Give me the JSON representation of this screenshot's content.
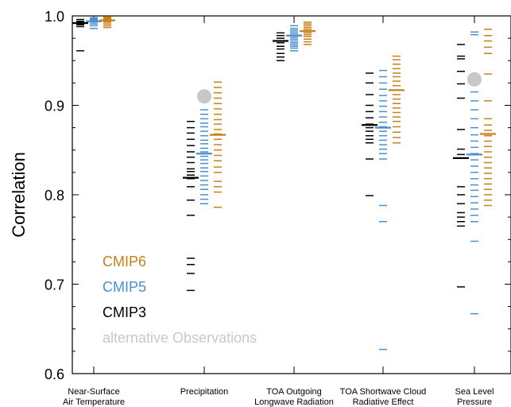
{
  "chart_data": {
    "type": "scatter",
    "ylabel": "Correlation",
    "ylim": [
      0.6,
      1.0
    ],
    "yticks": [
      "0.6",
      "0.7",
      "0.8",
      "0.9",
      "1.0"
    ],
    "categories": [
      [
        "Near-Surface",
        "Air Temperature"
      ],
      [
        "Precipitation"
      ],
      [
        "TOA Outgoing",
        "Longwave Radiation"
      ],
      [
        "TOA Shortwave Cloud",
        "Radiative Effect"
      ],
      [
        "Sea Level",
        "Pressure"
      ]
    ],
    "colors": {
      "CMIP6": "#c8801a",
      "CMIP5": "#4a90d0",
      "CMIP3": "#000000",
      "obs": "#c8c8c8"
    },
    "legend": {
      "placement": "bottom-left",
      "items": [
        {
          "key": "CMIP6",
          "label": "CMIP6"
        },
        {
          "key": "CMIP5",
          "label": "CMIP5"
        },
        {
          "key": "CMIP3",
          "label": "CMIP3"
        },
        {
          "key": "obs",
          "label": "alternative Observations"
        }
      ]
    },
    "observations": [
      null,
      0.91,
      null,
      null,
      0.929
    ],
    "series": [
      {
        "name": "CMIP3",
        "means": [
          0.992,
          0.819,
          0.972,
          0.878,
          0.841
        ],
        "models": [
          [
            0.996,
            0.994,
            0.993,
            0.992,
            0.991,
            0.99,
            0.988,
            0.961
          ],
          [
            0.882,
            0.875,
            0.869,
            0.862,
            0.855,
            0.848,
            0.842,
            0.836,
            0.829,
            0.826,
            0.822,
            0.818,
            0.809,
            0.794,
            0.777,
            0.729,
            0.722,
            0.712,
            0.693
          ],
          [
            0.981,
            0.978,
            0.975,
            0.972,
            0.97,
            0.966,
            0.963,
            0.958,
            0.954,
            0.95
          ],
          [
            0.936,
            0.925,
            0.912,
            0.9,
            0.893,
            0.886,
            0.879,
            0.875,
            0.871,
            0.866,
            0.862,
            0.858,
            0.84,
            0.799
          ],
          [
            0.968,
            0.955,
            0.952,
            0.938,
            0.924,
            0.908,
            0.873,
            0.851,
            0.845,
            0.809,
            0.8,
            0.79,
            0.78,
            0.775,
            0.77,
            0.765,
            0.697
          ]
        ]
      },
      {
        "name": "CMIP5",
        "means": [
          0.994,
          0.846,
          0.978,
          0.875,
          0.845
        ],
        "models": [
          [
            0.998,
            0.997,
            0.996,
            0.995,
            0.994,
            0.993,
            0.991,
            0.989,
            0.986
          ],
          [
            0.895,
            0.89,
            0.885,
            0.88,
            0.876,
            0.871,
            0.866,
            0.861,
            0.857,
            0.852,
            0.848,
            0.843,
            0.839,
            0.835,
            0.83,
            0.826,
            0.821,
            0.816,
            0.811,
            0.806,
            0.8,
            0.795,
            0.79
          ],
          [
            0.989,
            0.986,
            0.984,
            0.982,
            0.98,
            0.978,
            0.976,
            0.974,
            0.972,
            0.97,
            0.968,
            0.966,
            0.964,
            0.961
          ],
          [
            0.939,
            0.932,
            0.925,
            0.918,
            0.911,
            0.905,
            0.899,
            0.893,
            0.887,
            0.881,
            0.876,
            0.871,
            0.866,
            0.861,
            0.856,
            0.851,
            0.846,
            0.84,
            0.788,
            0.77,
            0.627
          ],
          [
            0.982,
            0.979,
            0.915,
            0.905,
            0.895,
            0.885,
            0.875,
            0.867,
            0.86,
            0.853,
            0.846,
            0.839,
            0.832,
            0.825,
            0.818,
            0.811,
            0.805,
            0.798,
            0.791,
            0.784,
            0.777,
            0.77,
            0.748,
            0.667
          ]
        ]
      },
      {
        "name": "CMIP6",
        "means": [
          0.995,
          0.867,
          0.983,
          0.917,
          0.868
        ],
        "models": [
          [
            0.999,
            0.998,
            0.997,
            0.996,
            0.995,
            0.994,
            0.993,
            0.991,
            0.989,
            0.987
          ],
          [
            0.926,
            0.92,
            0.914,
            0.908,
            0.902,
            0.896,
            0.89,
            0.884,
            0.879,
            0.873,
            0.868,
            0.862,
            0.856,
            0.85,
            0.844,
            0.838,
            0.831,
            0.825,
            0.815,
            0.809,
            0.803,
            0.786
          ],
          [
            0.993,
            0.991,
            0.989,
            0.987,
            0.985,
            0.983,
            0.981,
            0.979,
            0.977,
            0.974,
            0.971,
            0.968
          ],
          [
            0.955,
            0.951,
            0.946,
            0.941,
            0.936,
            0.932,
            0.927,
            0.922,
            0.917,
            0.912,
            0.907,
            0.902,
            0.897,
            0.892,
            0.887,
            0.882,
            0.876,
            0.87,
            0.864,
            0.858
          ],
          [
            0.985,
            0.978,
            0.972,
            0.965,
            0.958,
            0.935,
            0.905,
            0.885,
            0.878,
            0.872,
            0.866,
            0.86,
            0.854,
            0.848,
            0.842,
            0.836,
            0.83,
            0.824,
            0.818,
            0.812,
            0.806,
            0.8,
            0.794,
            0.788
          ]
        ]
      }
    ]
  }
}
